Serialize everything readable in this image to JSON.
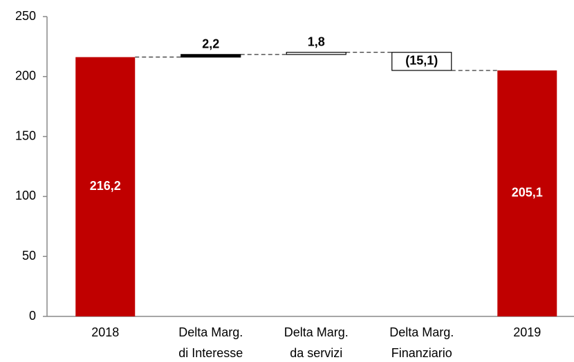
{
  "chart_data": {
    "type": "waterfall",
    "categories": [
      [
        "2018"
      ],
      [
        "Delta Marg.",
        "di Interesse"
      ],
      [
        "Delta Marg.",
        "da servizi"
      ],
      [
        "Delta Marg.",
        "Finanziario"
      ],
      [
        "2019"
      ]
    ],
    "values": [
      216.2,
      2.2,
      1.8,
      -15.1,
      205.1
    ],
    "value_labels": [
      "216,2",
      "2,2",
      "1,8",
      "(15,1)",
      "205,1"
    ],
    "colors": [
      "#c00000",
      "#000000",
      "#ffffff",
      "#ffffff",
      "#c00000"
    ],
    "ylim": [
      0,
      250
    ],
    "yticks": [
      0,
      50,
      100,
      150,
      200,
      250
    ]
  }
}
